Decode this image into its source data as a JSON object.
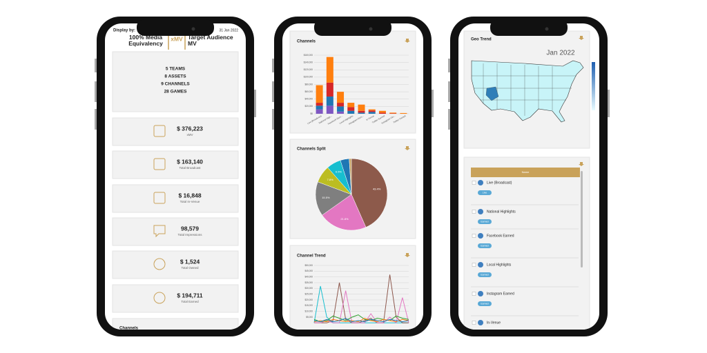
{
  "phone1": {
    "display_by": "Display by:",
    "date": "31 Jan 2022",
    "tabs": [
      "100% Media Equivalency",
      "xMV",
      "Target Audience MV"
    ],
    "summary": [
      "5 TEAMS",
      "8 ASSETS",
      "9 CHANNELS",
      "28 GAMES"
    ],
    "kpis": [
      {
        "value": "$ 376,223",
        "label": "xMV"
      },
      {
        "value": "$ 163,140",
        "label": "Total Broadcast"
      },
      {
        "value": "$ 16,848",
        "label": "Total In-Venue"
      },
      {
        "value": "98,579",
        "label": "Total Impressions"
      },
      {
        "value": "$ 1,524",
        "label": "Total Owned"
      },
      {
        "value": "$ 194,711",
        "label": "Total Earned"
      }
    ],
    "next_section": "Channels"
  },
  "phone2": {
    "bar_chart": {
      "type": "bar",
      "stacked": true,
      "title": "Channels",
      "categories": [
        "Live (Broadcast)",
        "National High...",
        "Facebook Earn...",
        "Local Highlights",
        "Instagram Earn...",
        "In-Venue",
        "Twitter Earned",
        "Instagram Ow...",
        "Twitter Owned"
      ],
      "series": [
        {
          "color": "#7e57c2",
          "values": [
            12000,
            22000,
            6000,
            0,
            0,
            0,
            0,
            0,
            0
          ]
        },
        {
          "color": "#1f77b4",
          "values": [
            10000,
            25000,
            14000,
            8000,
            3000,
            5000,
            0,
            0,
            0
          ]
        },
        {
          "color": "#d62728",
          "values": [
            8000,
            38000,
            10000,
            10000,
            5000,
            4000,
            3000,
            1000,
            0
          ]
        },
        {
          "color": "#ff7f0e",
          "values": [
            48000,
            70000,
            30000,
            12000,
            17000,
            3000,
            5000,
            2000,
            2000
          ]
        }
      ],
      "ylim": [
        0,
        160000
      ],
      "yticks": [
        {
          "value": 0,
          "label": "$0"
        },
        {
          "value": 20000,
          "label": "$20,000"
        },
        {
          "value": 40000,
          "label": "$40,000"
        },
        {
          "value": 60000,
          "label": "$60,000"
        },
        {
          "value": 80000,
          "label": "$80,000"
        },
        {
          "value": 100000,
          "label": "$100,000"
        },
        {
          "value": 120000,
          "label": "$120,000"
        },
        {
          "value": 140000,
          "label": "$140,000"
        },
        {
          "value": 160000,
          "label": "$160,000"
        }
      ],
      "grid": true
    },
    "pie_chart": {
      "type": "pie",
      "title": "Channels Split",
      "values": [
        43.4,
        21.8,
        15.5,
        7.8,
        6.5,
        4.0,
        1.0
      ],
      "value_labels": [
        "43.4%",
        "21.8%",
        "15.5%",
        "7.8%",
        "6.5%",
        null,
        null
      ],
      "colors": [
        "#8d5a4b",
        "#e377c2",
        "#7f7f7f",
        "#bcbd22",
        "#17becf",
        "#1f77b4",
        "#c8a76a"
      ]
    },
    "line_chart": {
      "type": "line",
      "title": "Channel Trend",
      "categories": [
        null,
        null,
        null,
        null,
        null,
        null,
        null,
        null,
        null,
        null,
        null,
        null,
        null,
        null,
        null,
        null
      ],
      "series": [
        {
          "color": "#17becf",
          "values": [
            0,
            32000,
            5000,
            0,
            0,
            0,
            0,
            0,
            0,
            0,
            0,
            0,
            0,
            0,
            0,
            0
          ]
        },
        {
          "color": "#8c564b",
          "values": [
            0,
            0,
            0,
            2000,
            35000,
            3000,
            0,
            0,
            2000,
            4000,
            0,
            0,
            42000,
            5000,
            0,
            0
          ]
        },
        {
          "color": "#e377c2",
          "values": [
            0,
            0,
            2000,
            0,
            0,
            28000,
            0,
            0,
            0,
            8000,
            0,
            0,
            5000,
            0,
            22000,
            0
          ]
        },
        {
          "color": "#2ca02c",
          "values": [
            3000,
            1000,
            2000,
            6000,
            4000,
            2000,
            5000,
            7000,
            3000,
            2000,
            4000,
            3000,
            2000,
            6000,
            4000,
            3000
          ]
        },
        {
          "color": "#ff7f0e",
          "values": [
            1000,
            2000,
            1000,
            3000,
            2000,
            1000,
            2000,
            1000,
            4000,
            2000,
            1000,
            3000,
            2000,
            1000,
            3000,
            2000
          ]
        },
        {
          "color": "#1f77b4",
          "values": [
            2000,
            1000,
            3000,
            1000,
            2000,
            4000,
            1000,
            2000,
            1000,
            3000,
            2000,
            1000,
            3000,
            2000,
            1000,
            2000
          ]
        }
      ],
      "ylim": [
        0,
        50000
      ],
      "yticks": [
        {
          "value": 5000,
          "label": "$5,000"
        },
        {
          "value": 10000,
          "label": "$10,000"
        },
        {
          "value": 15000,
          "label": "$15,000"
        },
        {
          "value": 20000,
          "label": "$20,000"
        },
        {
          "value": 25000,
          "label": "$25,000"
        },
        {
          "value": 30000,
          "label": "$30,000"
        },
        {
          "value": 35000,
          "label": "$35,000"
        },
        {
          "value": 40000,
          "label": "$40,000"
        },
        {
          "value": 45000,
          "label": "$45,000"
        },
        {
          "value": 50000,
          "label": "$50,000"
        }
      ],
      "grid": true
    }
  },
  "phone3": {
    "map": {
      "title": "Geo Trend",
      "period": "Jan 2022"
    },
    "list": {
      "header": "Name",
      "items": [
        {
          "name": "Live (Broadcast)",
          "tag": "Live"
        },
        {
          "name": "National Highlights",
          "tag": "Earned"
        },
        {
          "name": "Facebook Earned",
          "tag": "Earned"
        },
        {
          "name": "Local Highlights",
          "tag": "Earned"
        },
        {
          "name": "Instagram Earned",
          "tag": "Earned"
        },
        {
          "name": "In-Venue"
        }
      ]
    }
  }
}
